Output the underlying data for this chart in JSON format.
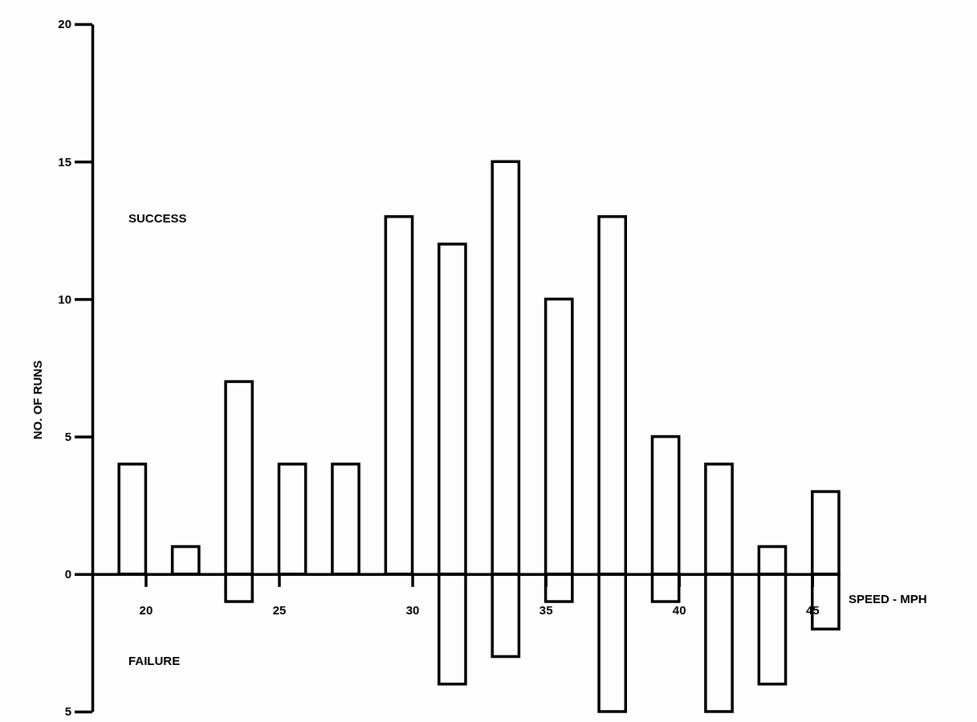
{
  "chart_data": {
    "type": "bar",
    "xlabel": "SPEED - MPH",
    "ylabel": "NO. OF RUNS",
    "x": [
      19.5,
      21.5,
      23.5,
      25.5,
      27.5,
      29.5,
      31.5,
      33.5,
      35.5,
      37.5,
      39.5,
      41.5,
      43.5,
      45.5
    ],
    "series": [
      {
        "color": "#000000",
        "values": [
          4,
          1,
          7,
          4,
          4,
          13,
          12,
          15,
          10,
          13,
          5,
          4,
          1,
          3
        ]
      },
      {
        "color": "#000000",
        "values": [
          null,
          null,
          -1,
          null,
          null,
          null,
          -4,
          -3,
          -1,
          -5,
          -1,
          -5,
          -4,
          -2
        ]
      }
    ],
    "annotations": [
      "SUCCESS",
      "FAILURE"
    ],
    "xlim": [
      18,
      46
    ],
    "xticks": [
      20,
      25,
      30,
      35,
      40,
      45
    ],
    "ylim": [
      -5,
      20
    ],
    "yticks": [
      {
        "value": -5,
        "label": "5"
      },
      0,
      5,
      10,
      15,
      20
    ],
    "stacked": true,
    "grid": false
  }
}
